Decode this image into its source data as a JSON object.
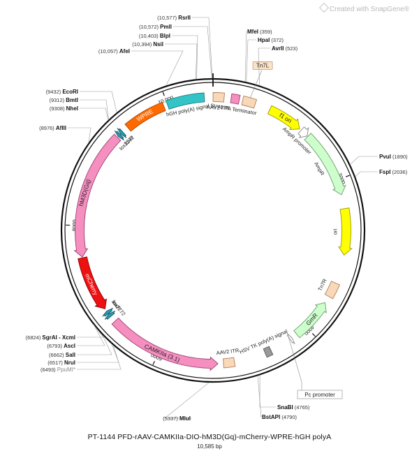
{
  "watermark": "Created with SnapGene®",
  "title": "PT-1144   PFD-rAAV-CAMKIIa-DIO-hM3D(Gq)-mCherry-WPRE-hGH polyA",
  "subtitle": "10,585 bp",
  "total_bp": 10585,
  "ticks": [
    {
      "pos": 2000,
      "label": "2000"
    },
    {
      "pos": 4000,
      "label": "4000"
    },
    {
      "pos": 6000,
      "label": "6000"
    },
    {
      "pos": 8000,
      "label": "8000"
    },
    {
      "pos": 10000,
      "label": "10,000"
    }
  ],
  "features": [
    {
      "name": "AAV2 ITR",
      "start": 1,
      "end": 141,
      "type": "box",
      "color": "#f8d8b8",
      "stroke": "#b0805a",
      "label_pos": "inside",
      "label": "AAV2 ITR"
    },
    {
      "name": "SV40 PA Terminator",
      "start": 230,
      "end": 335,
      "type": "box",
      "color": "#f48fc0",
      "stroke": "#a04070",
      "label_pos": "inside",
      "label": "SV40 PA Terminator"
    },
    {
      "name": "Tn7L",
      "start": 378,
      "end": 543,
      "type": "box",
      "color": "#f8d8b8",
      "stroke": "#b0805a",
      "label_pos": "outside",
      "label": "Tn7L"
    },
    {
      "name": "f1 ori",
      "start": 740,
      "end": 1190,
      "type": "arrow",
      "dir": 1,
      "color": "#ffff00",
      "stroke": "#999900",
      "label_pos": "on",
      "label": "f1 ori"
    },
    {
      "name": "AmpR promoter",
      "start": 1216,
      "end": 1320,
      "type": "arrow",
      "dir": 1,
      "color": "#ffffff",
      "stroke": "#888888",
      "label_pos": "inside",
      "label": "AmpR promoter"
    },
    {
      "name": "AmpR",
      "start": 1330,
      "end": 2190,
      "type": "arrow",
      "dir": 1,
      "color": "#ccffcc",
      "stroke": "#6a9a6a",
      "label_pos": "inside",
      "label": "AmpR"
    },
    {
      "name": "ori",
      "start": 2370,
      "end": 2960,
      "type": "arrow",
      "dir": 1,
      "color": "#ffff00",
      "stroke": "#999900",
      "label_pos": "inside",
      "label": "ori"
    },
    {
      "name": "Tn7R",
      "start": 3330,
      "end": 3520,
      "type": "box",
      "color": "#f8d8b8",
      "stroke": "#b0805a",
      "label_pos": "inside",
      "label": "Tn7R"
    },
    {
      "name": "GmR",
      "start": 3610,
      "end": 4150,
      "type": "arrow",
      "dir": -1,
      "color": "#ccffcc",
      "stroke": "#6a9a6a",
      "label_pos": "on",
      "label": "GmR"
    },
    {
      "name": "Pc promoter",
      "start": 4225,
      "end": 4255,
      "type": "arrow",
      "dir": -1,
      "color": "#ffffff",
      "stroke": "#888888",
      "label_pos": "outside",
      "label": "Pc promoter"
    },
    {
      "name": "HSV TK poly(A) signal",
      "start": 4535,
      "end": 4615,
      "type": "box",
      "color": "#999999",
      "stroke": "#555555",
      "label_pos": "inside",
      "label": "HSV TK poly(A) signal"
    },
    {
      "name": "AAV2 ITR",
      "start": 5020,
      "end": 5160,
      "type": "box",
      "color": "#f8d8b8",
      "stroke": "#b0805a",
      "label_pos": "inside",
      "label": "AAV2 ITR"
    },
    {
      "name": "CAMKIIa (3.1)",
      "start": 5230,
      "end": 6680,
      "type": "arrow",
      "dir": -1,
      "color": "#f48fc0",
      "stroke": "#a04070",
      "label_pos": "on",
      "label": "CAMKIIa (3.1)"
    },
    {
      "name": "lox2272",
      "start": 6760,
      "end": 6800,
      "type": "arrow",
      "dir": 1,
      "color": "#26a0b0",
      "stroke": "#125060",
      "label_pos": "inside",
      "label": "lox2272"
    },
    {
      "name": "loxP",
      "start": 6808,
      "end": 6845,
      "type": "arrow",
      "dir": 1,
      "color": "#26a0b0",
      "stroke": "#125060",
      "label_pos": "inside",
      "label": "loxP"
    },
    {
      "name": "mCherry",
      "start": 6880,
      "end": 7590,
      "type": "arrow",
      "dir": -1,
      "color": "#ee1111",
      "stroke": "#880000",
      "label_pos": "on",
      "label": "mCherry"
    },
    {
      "name": "hM3D(Gq)",
      "start": 7600,
      "end": 9240,
      "type": "arrow",
      "dir": -1,
      "color": "#f48fc0",
      "stroke": "#a04070",
      "label_pos": "on",
      "label": "hM3D(Gq)"
    },
    {
      "name": "lox2272",
      "start": 9255,
      "end": 9290,
      "type": "arrow",
      "dir": -1,
      "color": "#26a0b0",
      "stroke": "#125060",
      "label_pos": "inside",
      "label": "lox2272"
    },
    {
      "name": "loxP",
      "start": 9300,
      "end": 9335,
      "type": "arrow",
      "dir": -1,
      "color": "#26a0b0",
      "stroke": "#125060",
      "label_pos": "inside",
      "label": "loxP"
    },
    {
      "name": "WPRE",
      "start": 9420,
      "end": 9950,
      "type": "box",
      "color": "#ff6a00",
      "stroke": "#a84400",
      "label_pos": "on",
      "label": "WPRE"
    },
    {
      "name": "hGH poly(A) signal",
      "start": 10000,
      "end": 10475,
      "type": "box",
      "color": "#33c4c8",
      "stroke": "#1a7a7c",
      "label_pos": "inside",
      "label": "hGH poly(A) signal"
    }
  ],
  "sites": [
    {
      "name": "RsrII",
      "pos": 10577,
      "pos_text": "(10,577)"
    },
    {
      "name": "PmlI",
      "pos": 10572,
      "pos_text": "(10,572)"
    },
    {
      "name": "BlpI",
      "pos": 10403,
      "pos_text": "(10,403)"
    },
    {
      "name": "NsiI",
      "pos": 10394,
      "pos_text": "(10,394)"
    },
    {
      "name": "AfeI",
      "pos": 10057,
      "pos_text": "(10,057)"
    },
    {
      "name": "MfeI",
      "pos": 359,
      "pos_text": "(359)"
    },
    {
      "name": "HpaI",
      "pos": 372,
      "pos_text": "(372)"
    },
    {
      "name": "AvrII",
      "pos": 523,
      "pos_text": "(523)"
    },
    {
      "name": "PvuI",
      "pos": 1890,
      "pos_text": "(1890)"
    },
    {
      "name": "FspI",
      "pos": 2036,
      "pos_text": "(2036)"
    },
    {
      "name": "EcoRI",
      "pos": 9432,
      "pos_text": "(9432)"
    },
    {
      "name": "BmtI",
      "pos": 9312,
      "pos_text": "(9312)"
    },
    {
      "name": "NheI",
      "pos": 9308,
      "pos_text": "(9308)"
    },
    {
      "name": "AflII",
      "pos": 8976,
      "pos_text": "(8976)"
    },
    {
      "name": "SgrAI - XcmI",
      "pos": 6824,
      "pos_text": "(6824)"
    },
    {
      "name": "AscI",
      "pos": 6793,
      "pos_text": "(6793)"
    },
    {
      "name": "SalI",
      "pos": 6662,
      "pos_text": "(6662)"
    },
    {
      "name": "NruI",
      "pos": 6517,
      "pos_text": "(6517)"
    },
    {
      "name": "PpuMI*",
      "pos": 6493,
      "pos_text": "(6493)",
      "faded": true
    },
    {
      "name": "MluI",
      "pos": 5337,
      "pos_text": "(5337)"
    },
    {
      "name": "SnaBI",
      "pos": 4765,
      "pos_text": "(4765)"
    },
    {
      "name": "BstAPI",
      "pos": 4790,
      "pos_text": "(4790)"
    }
  ]
}
